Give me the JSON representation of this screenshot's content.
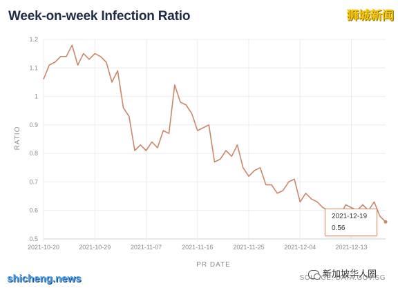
{
  "header": {
    "title": "Week-on-week Infection Ratio",
    "badge": "狮城新闻"
  },
  "tooltip": {
    "date": "2021-12-19",
    "value": "0.56"
  },
  "footer": {
    "site": "shicheng.news",
    "source": "SOURCE: DATA.GOV.SG",
    "wechat": "新加坡华人圈"
  },
  "colors": {
    "line": "#c9876a",
    "title": "#1f2a44",
    "axis_text": "#8a8a8a",
    "grid": "#ebebeb"
  },
  "chart_data": {
    "type": "line",
    "title": "Week-on-week Infection Ratio",
    "xlabel": "PR DATE",
    "ylabel": "RATIO",
    "ylim": [
      0.5,
      1.2
    ],
    "grid": true,
    "x_tick_labels": [
      "2021-10-20",
      "2021-10-29",
      "2021-11-07",
      "2021-11-16",
      "2021-11-25",
      "2021-12-04",
      "2021-12-13"
    ],
    "y_tick_labels": [
      "0.5",
      "0.6",
      "0.7",
      "0.8",
      "0.9",
      "1",
      "1.1",
      "1.2"
    ],
    "x": [
      "2021-10-20",
      "2021-10-21",
      "2021-10-22",
      "2021-10-23",
      "2021-10-24",
      "2021-10-25",
      "2021-10-26",
      "2021-10-27",
      "2021-10-28",
      "2021-10-29",
      "2021-10-30",
      "2021-10-31",
      "2021-11-01",
      "2021-11-02",
      "2021-11-03",
      "2021-11-04",
      "2021-11-05",
      "2021-11-06",
      "2021-11-07",
      "2021-11-08",
      "2021-11-09",
      "2021-11-10",
      "2021-11-11",
      "2021-11-12",
      "2021-11-13",
      "2021-11-14",
      "2021-11-15",
      "2021-11-16",
      "2021-11-17",
      "2021-11-18",
      "2021-11-19",
      "2021-11-20",
      "2021-11-21",
      "2021-11-22",
      "2021-11-23",
      "2021-11-24",
      "2021-11-25",
      "2021-11-26",
      "2021-11-27",
      "2021-11-28",
      "2021-11-29",
      "2021-11-30",
      "2021-12-01",
      "2021-12-02",
      "2021-12-03",
      "2021-12-04",
      "2021-12-05",
      "2021-12-06",
      "2021-12-07",
      "2021-12-08",
      "2021-12-09",
      "2021-12-10",
      "2021-12-11",
      "2021-12-12",
      "2021-12-13",
      "2021-12-14",
      "2021-12-15",
      "2021-12-16",
      "2021-12-17",
      "2021-12-18",
      "2021-12-19"
    ],
    "series": [
      {
        "values": [
          1.06,
          1.11,
          1.12,
          1.14,
          1.14,
          1.18,
          1.11,
          1.15,
          1.13,
          1.15,
          1.14,
          1.12,
          1.05,
          1.09,
          0.96,
          0.93,
          0.81,
          0.83,
          0.81,
          0.84,
          0.82,
          0.88,
          0.87,
          1.04,
          0.98,
          0.97,
          0.94,
          0.88,
          0.89,
          0.9,
          0.77,
          0.78,
          0.81,
          0.79,
          0.83,
          0.75,
          0.72,
          0.74,
          0.75,
          0.69,
          0.69,
          0.66,
          0.67,
          0.7,
          0.71,
          0.63,
          0.66,
          0.64,
          0.63,
          0.61,
          0.6,
          0.6,
          0.58,
          0.62,
          0.61,
          0.6,
          0.62,
          0.6,
          0.63,
          0.58,
          0.56
        ]
      }
    ]
  }
}
